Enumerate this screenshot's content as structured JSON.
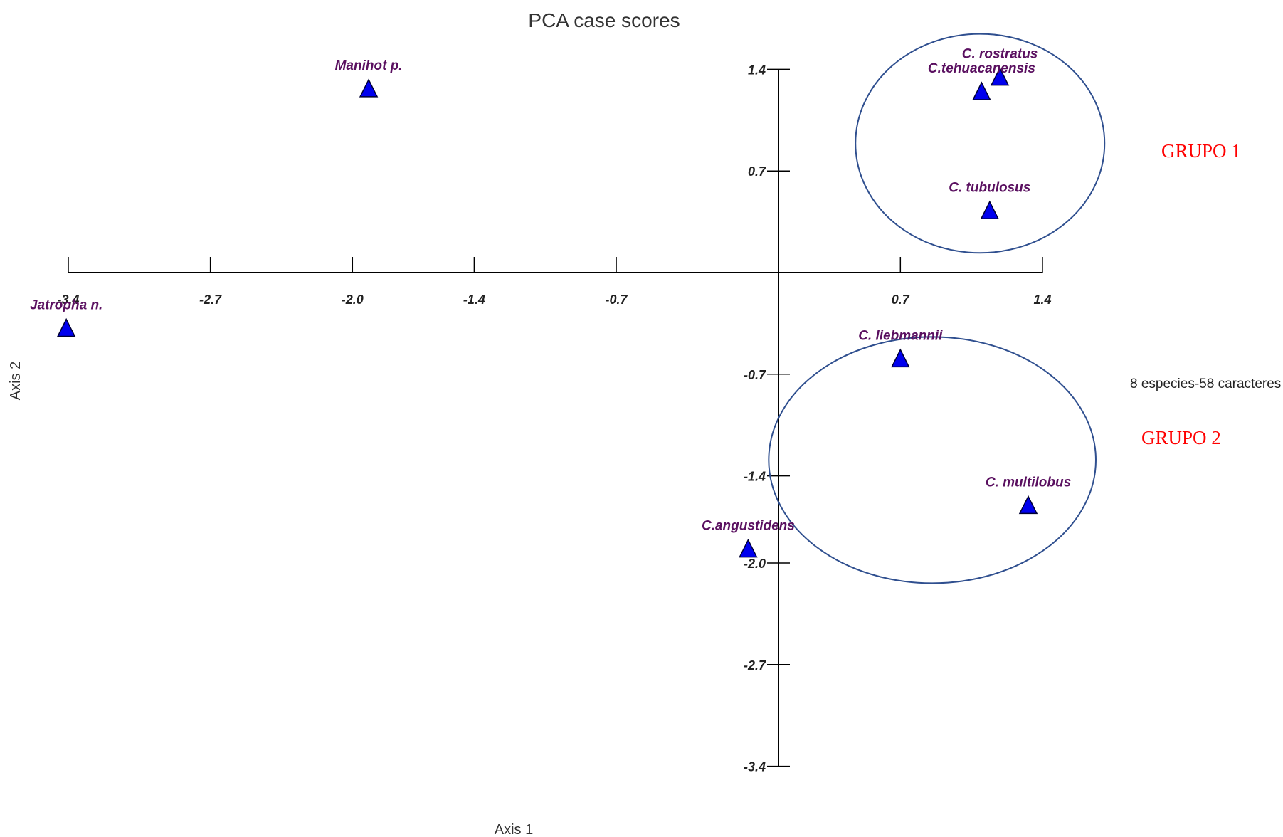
{
  "chart_data": {
    "type": "scatter",
    "title": "PCA case scores",
    "xlabel": "Axis 1",
    "ylabel": "Axis 2",
    "xlim": [
      -3.4,
      1.4
    ],
    "ylim": [
      -3.4,
      1.4
    ],
    "x_ticks": [
      {
        "value": -3.4,
        "label": "-3.4"
      },
      {
        "value": -2.7,
        "label": "-2.7"
      },
      {
        "value": -2.0,
        "label": "-2.0"
      },
      {
        "value": -1.4,
        "label": "-1.4"
      },
      {
        "value": -0.7,
        "label": "-0.7"
      },
      {
        "value": 0.7,
        "label": "0.7"
      },
      {
        "value": 1.4,
        "label": "1.4"
      }
    ],
    "y_ticks": [
      {
        "value": 1.4,
        "label": "1.4"
      },
      {
        "value": 0.7,
        "label": "0.7"
      },
      {
        "value": -0.7,
        "label": "-0.7"
      },
      {
        "value": -1.4,
        "label": "-1.4"
      },
      {
        "value": -2.0,
        "label": "-2.0"
      },
      {
        "value": -2.7,
        "label": "-2.7"
      },
      {
        "value": -3.4,
        "label": "-3.4"
      }
    ],
    "points": [
      {
        "label": "Manihot p.",
        "x": -1.92,
        "y": 1.27
      },
      {
        "label": "Jatropha n.",
        "x": -3.41,
        "y": -0.38
      },
      {
        "label": "C. rostratus",
        "x": 1.19,
        "y": 1.35
      },
      {
        "label": "C.tehuacanensis",
        "x": 1.1,
        "y": 1.25
      },
      {
        "label": "C. tubulosus",
        "x": 1.14,
        "y": 0.43
      },
      {
        "label": "C. liebmannii",
        "x": 0.7,
        "y": -0.59
      },
      {
        "label": "C. multilobus",
        "x": 1.33,
        "y": -1.6
      },
      {
        "label": "C.angustidens",
        "x": -0.05,
        "y": -1.9
      }
    ],
    "marker_color": "#0000ee",
    "groups": [
      {
        "label": "GRUPO 1",
        "members": [
          "C. rostratus",
          "C.tehuacanensis",
          "C. tubulosus"
        ]
      },
      {
        "label": "GRUPO 2",
        "members": [
          "C. liebmannii",
          "C. multilobus"
        ]
      }
    ],
    "group_label_color": "#ff0000",
    "circle_color": "#2f4f8f",
    "annotation": "8 especies-58 caracteres"
  }
}
